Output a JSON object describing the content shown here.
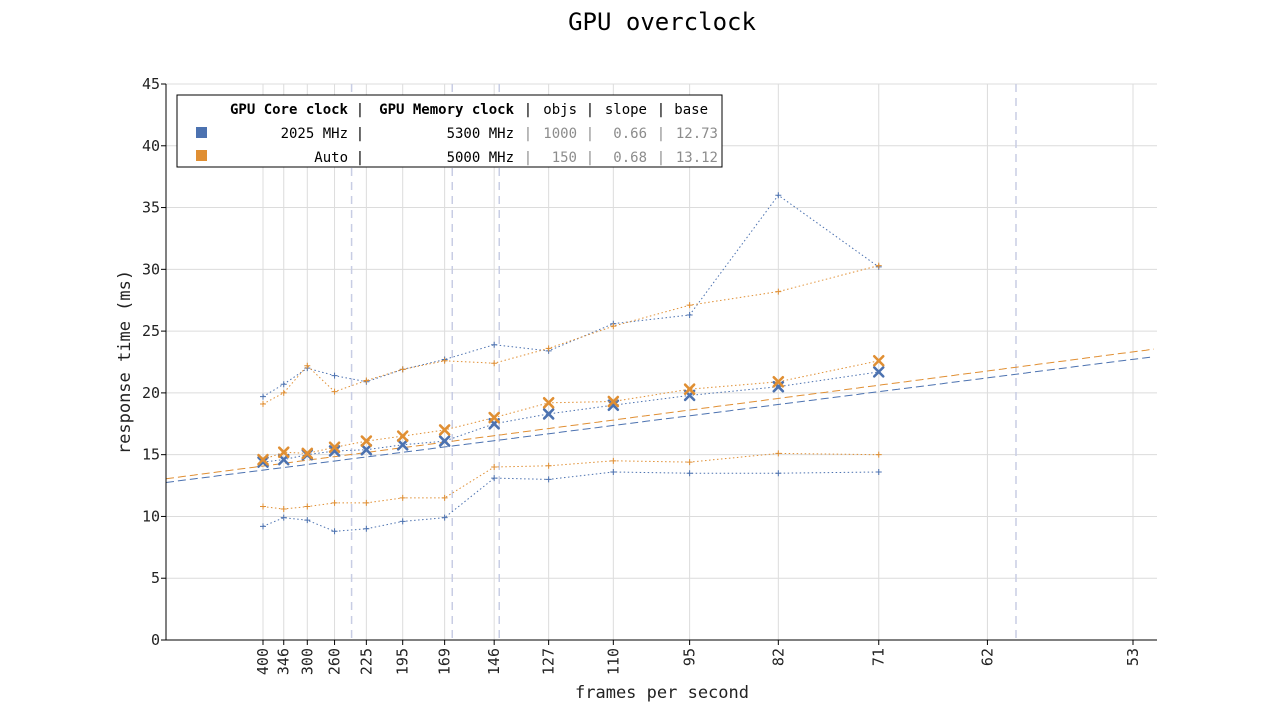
{
  "chart_data": {
    "type": "line",
    "title": "GPU overclock",
    "xlabel": "frames per second",
    "ylabel": "response time (ms)",
    "x_ticks": [
      "400",
      "346",
      "300",
      "260",
      "225",
      "195",
      "169",
      "146",
      "127",
      "110",
      "95",
      "82",
      "71",
      "62",
      "53"
    ],
    "x": [
      400,
      346,
      300,
      260,
      225,
      195,
      169,
      146,
      127,
      110,
      95,
      82,
      71
    ],
    "ylim": [
      0,
      45
    ],
    "y_ticks": [
      "0",
      "5",
      "10",
      "15",
      "20",
      "25",
      "30",
      "35",
      "40",
      "45"
    ],
    "grid": true,
    "legend_placement": "top-left",
    "legend_table": {
      "header": {
        "core": "GPU Core clock",
        "memory": "GPU Memory clock",
        "objs": "objs",
        "slope": "slope",
        "base": "base"
      },
      "rows": [
        {
          "core": "2025 MHz",
          "memory": "5300 MHz",
          "objs": "1000",
          "slope": "0.66",
          "base": "12.73",
          "color": "#4c72b0"
        },
        {
          "core": "Auto",
          "memory": "5000 MHz",
          "objs": "150",
          "slope": "0.68",
          "base": "13.12",
          "color": "#e08f33"
        }
      ]
    },
    "series": [
      {
        "color": "#4c72b0",
        "median": [
          14.4,
          14.6,
          15.0,
          15.3,
          15.4,
          15.8,
          16.1,
          17.5,
          18.3,
          19.0,
          19.8,
          20.5,
          21.7
        ],
        "upper": [
          19.7,
          20.7,
          22.0,
          21.4,
          20.9,
          21.9,
          22.7,
          23.9,
          23.4,
          25.6,
          26.3,
          36.0,
          30.2
        ],
        "lower": [
          9.2,
          9.9,
          9.7,
          8.8,
          9.0,
          9.6,
          9.9,
          13.1,
          13.0,
          13.6,
          13.5,
          13.5,
          13.6
        ],
        "fit_slope": 0.66,
        "fit_base": 12.73
      },
      {
        "color": "#e08f33",
        "median": [
          14.6,
          15.2,
          15.1,
          15.6,
          16.1,
          16.5,
          17.0,
          18.0,
          19.2,
          19.3,
          20.3,
          20.9,
          22.6
        ],
        "upper": [
          19.1,
          20.0,
          22.2,
          20.1,
          21.0,
          21.9,
          22.6,
          22.4,
          23.6,
          25.4,
          27.1,
          28.2,
          30.3
        ],
        "lower": [
          10.8,
          10.6,
          10.8,
          11.1,
          11.1,
          11.5,
          11.5,
          14.0,
          14.1,
          14.5,
          14.4,
          15.1,
          15.0
        ],
        "fit_slope": 0.68,
        "fit_base": 13.12
      }
    ],
    "reference_lines_fps": [
      240,
      165,
      144,
      60
    ]
  }
}
